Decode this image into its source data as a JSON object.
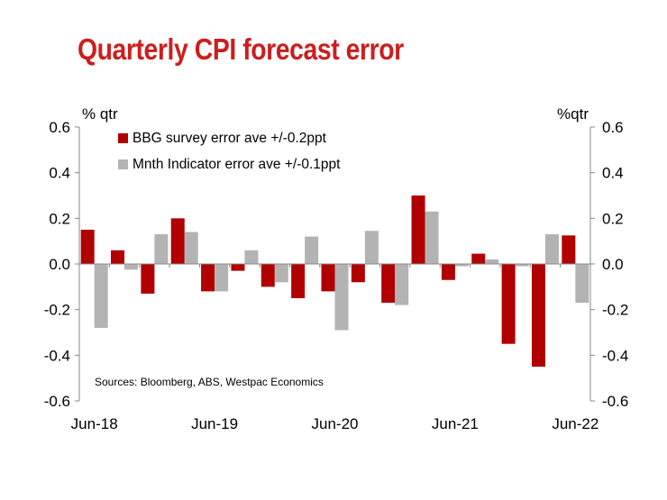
{
  "title": "Quarterly CPI forecast error",
  "chart_data": {
    "type": "bar",
    "title": "Quarterly CPI forecast error",
    "left_unit": "% qtr",
    "right_unit": "%qtr",
    "ylim": [
      -0.6,
      0.6
    ],
    "yticks": [
      "0.6",
      "0.4",
      "0.2",
      "0.0",
      "-0.2",
      "-0.4",
      "-0.6"
    ],
    "ytick_values": [
      0.6,
      0.4,
      0.2,
      0.0,
      -0.2,
      -0.4,
      -0.6
    ],
    "x_tick_labels": [
      {
        "label": "Jun-18",
        "index": 0
      },
      {
        "label": "Jun-19",
        "index": 4
      },
      {
        "label": "Jun-20",
        "index": 8
      },
      {
        "label": "Jun-21",
        "index": 12
      },
      {
        "label": "Jun-22",
        "index": 16
      }
    ],
    "category_count": 17,
    "series": [
      {
        "name": "BBG survey error ave +/-0.2ppt",
        "color": "#b00000",
        "values": [
          0.15,
          0.06,
          -0.13,
          0.2,
          -0.12,
          -0.03,
          -0.1,
          -0.15,
          -0.12,
          -0.08,
          -0.17,
          0.3,
          -0.07,
          0.045,
          -0.35,
          -0.45,
          0.125
        ]
      },
      {
        "name": "Mnth Indicator error ave +/-0.1ppt",
        "color": "#b3b3b3",
        "values": [
          -0.28,
          -0.025,
          0.13,
          0.14,
          -0.12,
          0.06,
          -0.08,
          0.12,
          -0.29,
          0.145,
          -0.18,
          0.23,
          -0.01,
          0.02,
          -0.01,
          0.13,
          -0.17
        ]
      }
    ],
    "legend_position": "top-left",
    "grid": false,
    "annotation": "Sources: Bloomberg, ABS, Westpac Economics"
  }
}
